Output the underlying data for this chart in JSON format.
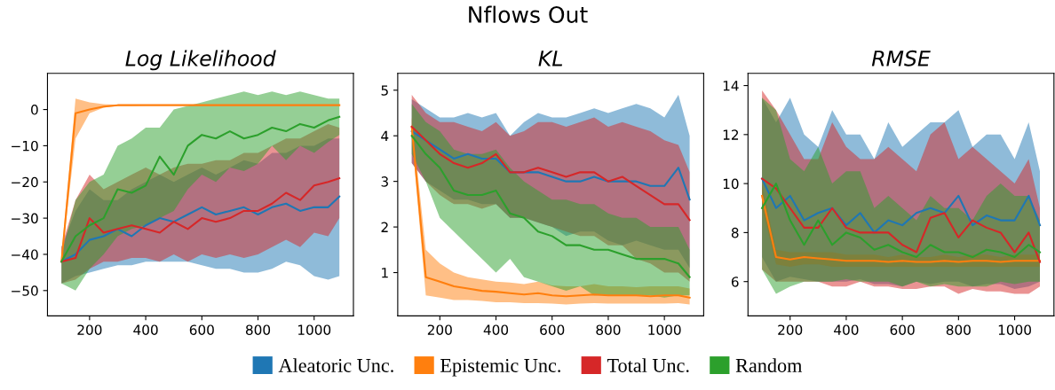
{
  "chart_data": [
    {
      "type": "line",
      "title": "Log Likelihood",
      "annotations": [
        "Nflows Out"
      ],
      "legend": "bottom",
      "grid": false,
      "xlim": [
        50,
        1140
      ],
      "xticks": [
        200,
        400,
        600,
        800,
        1000
      ],
      "ylim": [
        -57,
        10
      ],
      "yticks": [
        {
          "value": -50,
          "label": "−50"
        },
        {
          "value": -40,
          "label": "−40"
        },
        {
          "value": -30,
          "label": "−30"
        },
        {
          "value": -20,
          "label": "−20"
        },
        {
          "value": -10,
          "label": "−10"
        },
        0
      ],
      "x": [
        100,
        150,
        200,
        250,
        300,
        350,
        400,
        450,
        500,
        550,
        600,
        650,
        700,
        750,
        800,
        850,
        900,
        950,
        1000,
        1050,
        1090
      ],
      "series": [
        {
          "name": "Aleatoric Unc.",
          "color": "#1f77b4",
          "values": [
            -42,
            -40,
            -36,
            -35,
            -33,
            -35,
            -32,
            -30,
            -31,
            -29,
            -27,
            -29,
            -28,
            -27,
            -29,
            -27,
            -26,
            -28,
            -27,
            -27,
            -24
          ],
          "lower": [
            -48,
            -46,
            -45,
            -44,
            -43,
            -43,
            -42,
            -42,
            -42,
            -42,
            -43,
            -44,
            -44,
            -45,
            -45,
            -44,
            -42,
            -43,
            -46,
            -47,
            -46
          ],
          "upper": [
            -38,
            -28,
            -22,
            -25,
            -25,
            -22,
            -20,
            -18,
            -20,
            -18,
            -16,
            -18,
            -16,
            -14,
            -15,
            -12,
            -12,
            -10,
            -10,
            -8,
            -8
          ]
        },
        {
          "name": "Epistemic Unc.",
          "color": "#ff7f0e",
          "values": [
            -42,
            -1,
            0,
            0.8,
            1.2,
            1.2,
            1.2,
            1.2,
            1.2,
            1.2,
            1.2,
            1.2,
            1.2,
            1.2,
            1.2,
            1.2,
            1.2,
            1.2,
            1.2,
            1.2,
            1.2
          ],
          "lower": [
            -42,
            -8,
            -1,
            0.5,
            1,
            1,
            1.1,
            1.1,
            1.1,
            1.1,
            1.1,
            1.1,
            1.1,
            1.1,
            1.1,
            1.1,
            1.1,
            1.1,
            1.1,
            1.1,
            1.1
          ],
          "upper": [
            -40,
            3,
            2,
            1.5,
            1.3,
            1.3,
            1.3,
            1.3,
            1.3,
            1.3,
            1.3,
            1.3,
            1.3,
            1.3,
            1.3,
            1.3,
            1.3,
            1.3,
            1.3,
            1.3,
            1.3
          ]
        },
        {
          "name": "Total Unc.",
          "color": "#d62728",
          "values": [
            -42,
            -41,
            -30,
            -34,
            -33,
            -32,
            -33,
            -34,
            -31,
            -33,
            -30,
            -31,
            -30,
            -28,
            -28,
            -26,
            -23,
            -25,
            -21,
            -20,
            -19
          ],
          "lower": [
            -48,
            -47,
            -44,
            -42,
            -42,
            -41,
            -41,
            -42,
            -40,
            -42,
            -40,
            -41,
            -40,
            -41,
            -40,
            -38,
            -36,
            -38,
            -34,
            -35,
            -30
          ],
          "upper": [
            -38,
            -25,
            -18,
            -22,
            -20,
            -18,
            -16,
            -18,
            -16,
            -15,
            -15,
            -14,
            -14,
            -12,
            -12,
            -10,
            -8,
            -8,
            -6,
            -4,
            -5
          ]
        },
        {
          "name": "Random",
          "color": "#2ca02c",
          "values": [
            -42,
            -35,
            -32,
            -30,
            -22,
            -23,
            -21,
            -13,
            -18,
            -10,
            -7,
            -8,
            -6,
            -8,
            -7,
            -5,
            -6,
            -4,
            -5,
            -3,
            -2
          ],
          "lower": [
            -48,
            -50,
            -44,
            -40,
            -35,
            -33,
            -32,
            -30,
            -28,
            -22,
            -18,
            -20,
            -16,
            -17,
            -15,
            -10,
            -14,
            -10,
            -12,
            -9,
            -7
          ],
          "upper": [
            -40,
            -25,
            -20,
            -18,
            -10,
            -8,
            -5,
            -5,
            0,
            1,
            2,
            3,
            4,
            5,
            4,
            5,
            4,
            5,
            4,
            3,
            3
          ]
        }
      ]
    },
    {
      "type": "line",
      "title": "KL",
      "grid": false,
      "xlim": [
        50,
        1140
      ],
      "xticks": [
        200,
        400,
        600,
        800,
        1000
      ],
      "ylim": [
        0.05,
        5.37
      ],
      "yticks": [
        1,
        2,
        3,
        4,
        5
      ],
      "x": [
        100,
        150,
        200,
        250,
        300,
        350,
        400,
        450,
        500,
        550,
        600,
        650,
        700,
        750,
        800,
        850,
        900,
        950,
        1000,
        1050,
        1090
      ],
      "series": [
        {
          "color": "#1f77b4",
          "values": [
            4.1,
            3.9,
            3.7,
            3.5,
            3.6,
            3.5,
            3.5,
            3.2,
            3.2,
            3.2,
            3.1,
            3.0,
            3.0,
            3.1,
            3.0,
            3.0,
            3.0,
            2.9,
            2.9,
            3.3,
            2.6
          ],
          "lower": [
            3.4,
            3.0,
            2.8,
            2.6,
            2.6,
            2.5,
            2.5,
            2.2,
            2.2,
            2.1,
            2.0,
            1.8,
            1.9,
            1.9,
            1.7,
            1.6,
            1.7,
            1.6,
            1.5,
            1.5,
            1.1
          ],
          "upper": [
            4.8,
            4.6,
            4.4,
            4.4,
            4.5,
            4.4,
            4.5,
            4.0,
            4.3,
            4.5,
            4.4,
            4.4,
            4.5,
            4.6,
            4.5,
            4.6,
            4.7,
            4.6,
            4.4,
            4.9,
            4.0
          ]
        },
        {
          "color": "#ff7f0e",
          "values": [
            4.2,
            0.9,
            0.8,
            0.7,
            0.65,
            0.6,
            0.58,
            0.55,
            0.52,
            0.55,
            0.5,
            0.48,
            0.5,
            0.52,
            0.5,
            0.5,
            0.5,
            0.48,
            0.5,
            0.5,
            0.45
          ],
          "lower": [
            4.0,
            0.5,
            0.45,
            0.4,
            0.4,
            0.38,
            0.35,
            0.35,
            0.33,
            0.33,
            0.32,
            0.3,
            0.32,
            0.33,
            0.32,
            0.32,
            0.32,
            0.32,
            0.32,
            0.33,
            0.3
          ],
          "upper": [
            4.4,
            1.5,
            1.2,
            1.0,
            0.9,
            0.85,
            0.8,
            0.78,
            0.75,
            0.8,
            0.72,
            0.7,
            0.7,
            0.75,
            0.7,
            0.7,
            0.68,
            0.7,
            0.7,
            0.7,
            0.65
          ]
        },
        {
          "color": "#d62728",
          "values": [
            4.2,
            3.9,
            3.6,
            3.4,
            3.3,
            3.4,
            3.6,
            3.2,
            3.2,
            3.3,
            3.2,
            3.1,
            3.2,
            3.2,
            3.0,
            3.1,
            2.9,
            2.7,
            2.5,
            2.5,
            2.15
          ],
          "lower": [
            3.4,
            3.0,
            2.7,
            2.5,
            2.5,
            2.4,
            2.5,
            2.2,
            2.2,
            2.1,
            2.0,
            1.9,
            1.8,
            1.8,
            1.6,
            1.6,
            1.3,
            1.2,
            1.0,
            1.0,
            0.8
          ],
          "upper": [
            4.9,
            4.5,
            4.3,
            4.3,
            4.2,
            4.1,
            4.3,
            4.0,
            4.1,
            4.3,
            4.3,
            4.2,
            4.3,
            4.4,
            4.2,
            4.3,
            4.2,
            4.1,
            3.9,
            3.8,
            3.2
          ]
        },
        {
          "color": "#2ca02c",
          "values": [
            4.0,
            3.6,
            3.3,
            2.8,
            2.7,
            2.7,
            2.8,
            2.3,
            2.2,
            1.9,
            1.8,
            1.6,
            1.6,
            1.5,
            1.5,
            1.4,
            1.3,
            1.3,
            1.3,
            1.2,
            0.9
          ],
          "lower": [
            3.6,
            3.0,
            2.2,
            1.9,
            1.6,
            1.3,
            1.0,
            1.3,
            0.9,
            0.8,
            0.7,
            0.6,
            0.7,
            0.5,
            0.5,
            0.5,
            0.5,
            0.5,
            0.45,
            0.5,
            0.5
          ],
          "upper": [
            4.7,
            4.3,
            4.1,
            3.7,
            3.6,
            3.6,
            3.7,
            3.3,
            3.0,
            2.8,
            2.6,
            2.6,
            2.5,
            2.5,
            2.3,
            2.2,
            2.2,
            2.0,
            2.0,
            2.0,
            1.5
          ]
        }
      ]
    },
    {
      "type": "line",
      "title": "RMSE",
      "grid": false,
      "xlim": [
        50,
        1140
      ],
      "xticks": [
        200,
        400,
        600,
        800,
        1000
      ],
      "ylim": [
        4.6,
        14.5
      ],
      "yticks": [
        6,
        8,
        10,
        12,
        14
      ],
      "x": [
        100,
        150,
        200,
        250,
        300,
        350,
        400,
        450,
        500,
        550,
        600,
        650,
        700,
        750,
        800,
        850,
        900,
        950,
        1000,
        1050,
        1090
      ],
      "series": [
        {
          "color": "#1f77b4",
          "values": [
            10.2,
            9.0,
            9.5,
            8.5,
            8.8,
            9.0,
            8.3,
            8.8,
            8.0,
            8.5,
            8.3,
            8.8,
            9.0,
            8.8,
            9.5,
            8.3,
            8.7,
            8.5,
            8.5,
            9.5,
            8.3
          ],
          "lower": [
            7,
            6.0,
            6.2,
            6.1,
            6.0,
            6.0,
            6.0,
            6.1,
            5.9,
            5.9,
            5.8,
            6.0,
            5.9,
            6.0,
            6.0,
            5.8,
            5.9,
            5.9,
            5.7,
            5.8,
            6.0
          ],
          "upper": [
            13.5,
            12.5,
            13.5,
            12.0,
            11.5,
            13.0,
            12.0,
            12.0,
            11.0,
            12.5,
            11.5,
            12.0,
            12.5,
            12.5,
            13.0,
            11.5,
            12.0,
            12.0,
            11.0,
            12.5,
            10.5
          ]
        },
        {
          "color": "#ff7f0e",
          "values": [
            9.5,
            7.0,
            6.9,
            7.0,
            6.95,
            6.9,
            6.85,
            6.85,
            6.85,
            6.8,
            6.85,
            6.8,
            6.8,
            6.85,
            6.8,
            6.85,
            6.85,
            6.8,
            6.85,
            6.85,
            6.85
          ],
          "lower": [
            9.0,
            6.7,
            6.6,
            6.7,
            6.7,
            6.6,
            6.6,
            6.6,
            6.6,
            6.6,
            6.6,
            6.6,
            6.6,
            6.6,
            6.6,
            6.6,
            6.6,
            6.6,
            6.6,
            6.6,
            6.6
          ],
          "upper": [
            10,
            7.3,
            7.2,
            7.2,
            7.2,
            7.2,
            7.1,
            7.1,
            7.1,
            7.0,
            7.1,
            7.0,
            7.0,
            7.1,
            7.0,
            7.1,
            7.1,
            7.0,
            7.1,
            7.1,
            7.1
          ]
        },
        {
          "color": "#d62728",
          "values": [
            10.2,
            9.8,
            9.0,
            8.2,
            8.2,
            9.0,
            8.2,
            8.0,
            8.0,
            8.0,
            7.5,
            7.2,
            8.6,
            8.8,
            7.8,
            8.5,
            8.2,
            8.0,
            7.2,
            8.0,
            6.8
          ],
          "lower": [
            6.5,
            6.0,
            6.0,
            6.0,
            6.0,
            5.8,
            5.8,
            6.0,
            5.8,
            5.8,
            5.7,
            5.7,
            5.8,
            5.8,
            5.5,
            5.7,
            5.6,
            5.6,
            5.5,
            5.5,
            5.8
          ],
          "upper": [
            13.8,
            13.0,
            12.0,
            11.0,
            11.0,
            12.5,
            11.5,
            11.0,
            11.0,
            11.5,
            11.0,
            10.5,
            12.0,
            12.5,
            11.0,
            11.5,
            11.0,
            10.5,
            10.0,
            11.0,
            9.0
          ]
        },
        {
          "color": "#2ca02c",
          "values": [
            9.0,
            10.0,
            8.5,
            7.5,
            8.5,
            7.5,
            8.0,
            7.8,
            7.3,
            7.5,
            7.2,
            7.0,
            7.5,
            7.2,
            7.2,
            7.0,
            7.3,
            7.2,
            7.0,
            7.5,
            7.2
          ],
          "lower": [
            6.5,
            5.5,
            5.8,
            6.0,
            6.0,
            6.0,
            6.1,
            6.0,
            6.0,
            6.0,
            5.8,
            6.0,
            5.8,
            5.9,
            5.8,
            5.8,
            5.8,
            6.0,
            5.9,
            6.0,
            6.0
          ],
          "upper": [
            13.5,
            13.0,
            11.0,
            10.5,
            11.5,
            10.0,
            10.5,
            10.5,
            9.0,
            9.5,
            9.0,
            8.5,
            9.5,
            9.0,
            9.0,
            8.5,
            9.5,
            10.0,
            9.5,
            9.5,
            8.5
          ]
        }
      ]
    }
  ]
}
